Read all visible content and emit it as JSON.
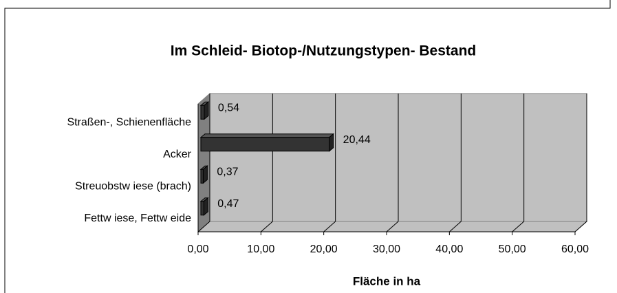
{
  "chart_data": {
    "type": "bar3d",
    "title": "Im Schleid- Biotop-/Nutzungstypen- Bestand",
    "x_label": "Fläche in ha",
    "categories": [
      "Straßen-, Schienenfläche",
      "Acker",
      "Streuobstw iese (brach)",
      "Fettw iese, Fettw eide"
    ],
    "values": [
      0.54,
      20.44,
      0.37,
      0.47
    ],
    "value_labels": [
      "0,54",
      "20,44",
      "0,37",
      "0,47"
    ],
    "color": "#333333",
    "xlim": [
      0,
      60
    ],
    "xticks": [
      {
        "value": 0,
        "label": "0,00"
      },
      {
        "value": 10,
        "label": "10,00"
      },
      {
        "value": 20,
        "label": "20,00"
      },
      {
        "value": 30,
        "label": "30,00"
      },
      {
        "value": 40,
        "label": "40,00"
      },
      {
        "value": 50,
        "label": "50,00"
      },
      {
        "value": 60,
        "label": "60,00"
      }
    ],
    "grid": true
  }
}
